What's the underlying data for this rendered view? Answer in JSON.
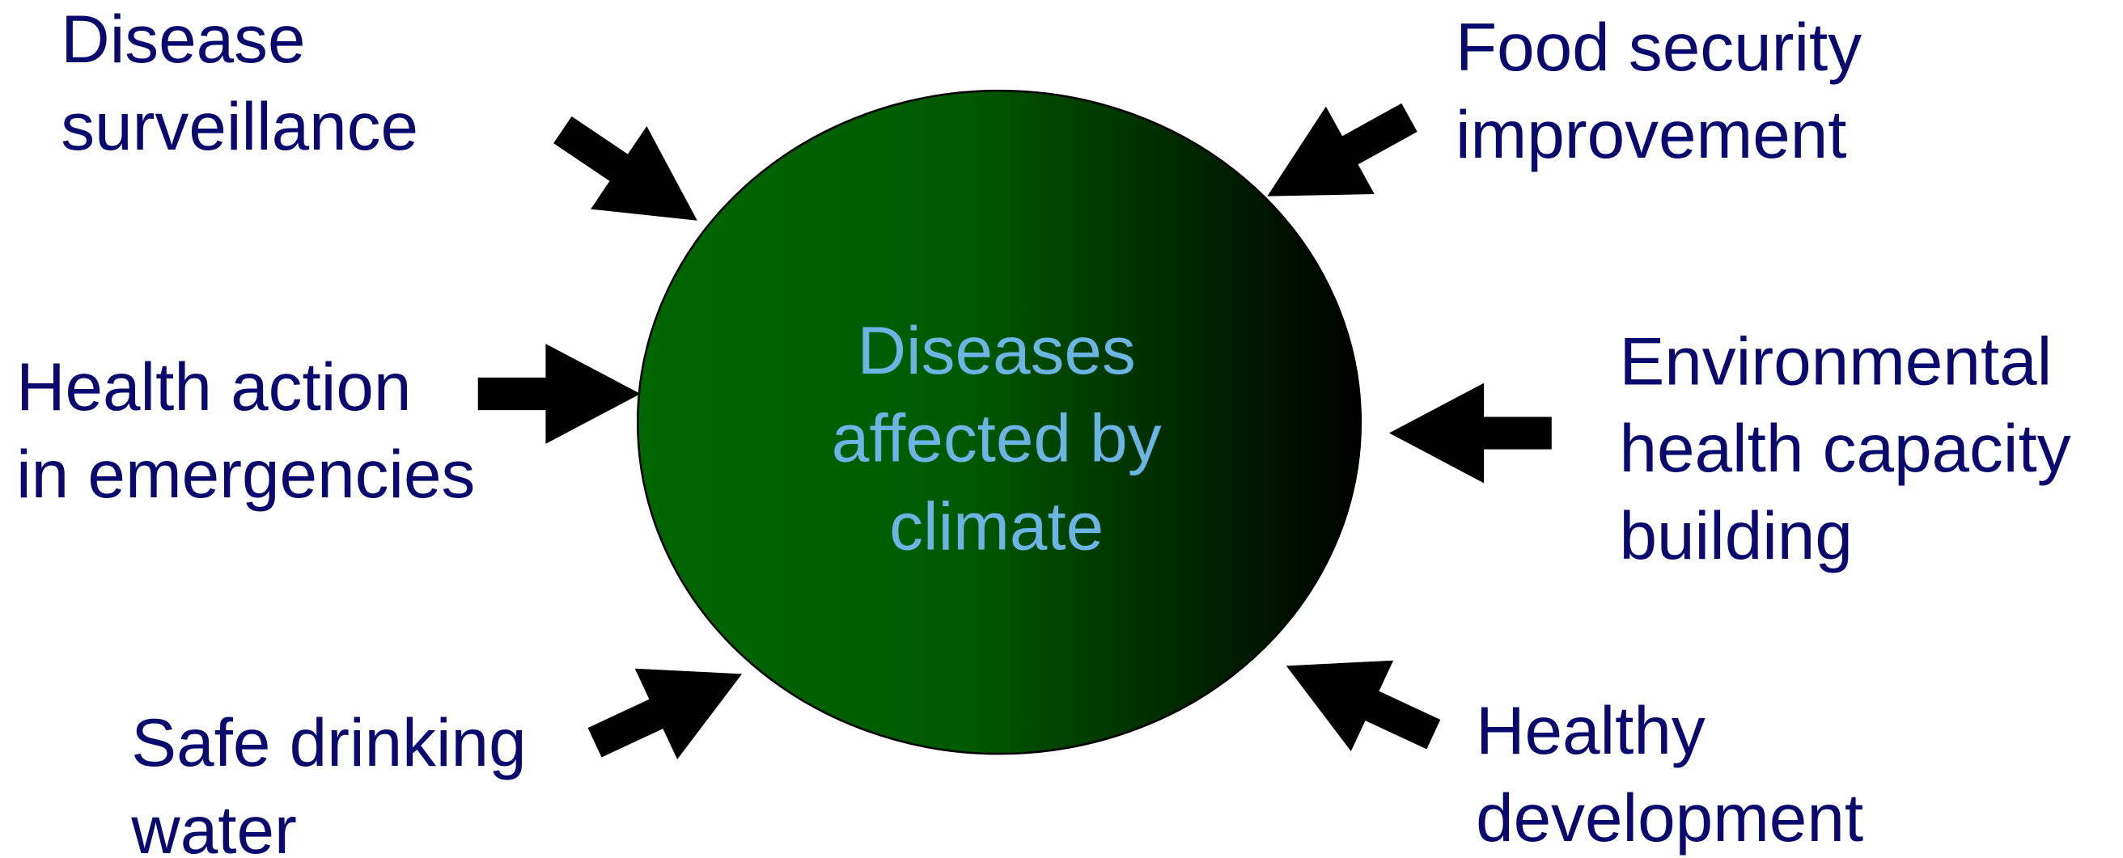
{
  "center": {
    "lines": [
      "Diseases",
      "affected by",
      "climate"
    ]
  },
  "nodes": [
    {
      "lines": [
        "Disease",
        "surveillance"
      ]
    },
    {
      "lines": [
        "Food security",
        "improvement"
      ]
    },
    {
      "lines": [
        "Health action",
        "in emergencies"
      ]
    },
    {
      "lines": [
        "Environmental",
        "health capacity",
        "building"
      ]
    },
    {
      "lines": [
        "Safe drinking",
        "water"
      ]
    },
    {
      "lines": [
        "Healthy",
        "development"
      ]
    }
  ]
}
